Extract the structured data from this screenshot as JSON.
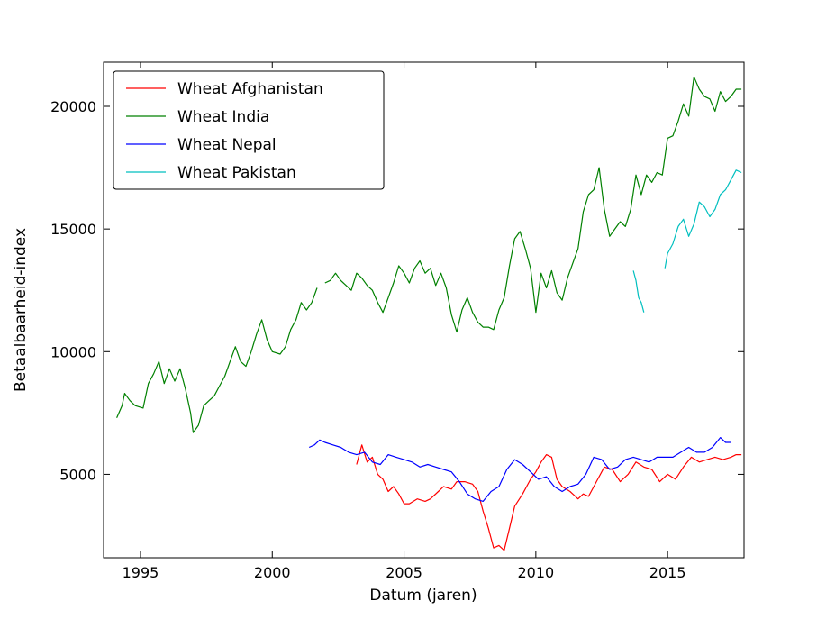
{
  "chart_data": {
    "type": "line",
    "title": "",
    "xlabel": "Datum (jaren)",
    "ylabel": "Betaalbaarheid-index",
    "xlim": [
      1993.6,
      2017.9
    ],
    "ylim": [
      1600,
      21800
    ],
    "xticks": [
      1995,
      2000,
      2005,
      2010,
      2015
    ],
    "yticks": [
      5000,
      10000,
      15000,
      20000
    ],
    "grid": false,
    "legend": "top-left",
    "series": [
      {
        "name": "Wheat Afghanistan",
        "color": "#ff0000",
        "segments": [
          [
            [
              2003.2,
              5400
            ],
            [
              2003.4,
              6200
            ],
            [
              2003.6,
              5500
            ],
            [
              2003.8,
              5700
            ],
            [
              2004.0,
              5000
            ],
            [
              2004.2,
              4800
            ],
            [
              2004.4,
              4300
            ],
            [
              2004.6,
              4500
            ],
            [
              2004.8,
              4200
            ],
            [
              2005.0,
              3800
            ],
            [
              2005.2,
              3800
            ],
            [
              2005.5,
              4000
            ],
            [
              2005.8,
              3900
            ],
            [
              2006.0,
              4000
            ],
            [
              2006.3,
              4300
            ],
            [
              2006.5,
              4500
            ],
            [
              2006.8,
              4400
            ],
            [
              2007.0,
              4700
            ],
            [
              2007.3,
              4700
            ],
            [
              2007.6,
              4600
            ],
            [
              2007.8,
              4300
            ],
            [
              2008.0,
              3500
            ],
            [
              2008.2,
              2800
            ],
            [
              2008.4,
              2000
            ],
            [
              2008.6,
              2100
            ],
            [
              2008.8,
              1900
            ],
            [
              2009.0,
              2800
            ],
            [
              2009.2,
              3700
            ],
            [
              2009.5,
              4200
            ],
            [
              2009.8,
              4800
            ],
            [
              2010.0,
              5100
            ],
            [
              2010.2,
              5500
            ],
            [
              2010.4,
              5800
            ],
            [
              2010.6,
              5700
            ],
            [
              2010.8,
              4800
            ],
            [
              2011.0,
              4500
            ],
            [
              2011.3,
              4300
            ],
            [
              2011.6,
              4000
            ],
            [
              2011.8,
              4200
            ],
            [
              2012.0,
              4100
            ],
            [
              2012.3,
              4700
            ],
            [
              2012.6,
              5300
            ],
            [
              2012.9,
              5200
            ],
            [
              2013.2,
              4700
            ],
            [
              2013.5,
              5000
            ],
            [
              2013.8,
              5500
            ],
            [
              2014.1,
              5300
            ],
            [
              2014.4,
              5200
            ],
            [
              2014.7,
              4700
            ],
            [
              2015.0,
              5000
            ],
            [
              2015.3,
              4800
            ],
            [
              2015.6,
              5300
            ],
            [
              2015.9,
              5700
            ],
            [
              2016.2,
              5500
            ],
            [
              2016.5,
              5600
            ],
            [
              2016.8,
              5700
            ],
            [
              2017.1,
              5600
            ],
            [
              2017.4,
              5700
            ],
            [
              2017.6,
              5800
            ],
            [
              2017.8,
              5800
            ]
          ]
        ]
      },
      {
        "name": "Wheat India",
        "color": "#008000",
        "segments": [
          [
            [
              1994.1,
              7300
            ],
            [
              1994.3,
              7800
            ],
            [
              1994.4,
              8300
            ],
            [
              1994.6,
              8000
            ],
            [
              1994.8,
              7800
            ],
            [
              1995.1,
              7700
            ],
            [
              1995.3,
              8700
            ],
            [
              1995.5,
              9100
            ],
            [
              1995.7,
              9600
            ],
            [
              1995.9,
              8700
            ],
            [
              1996.1,
              9300
            ],
            [
              1996.3,
              8800
            ],
            [
              1996.5,
              9300
            ],
            [
              1996.7,
              8500
            ],
            [
              1996.9,
              7500
            ],
            [
              1997.0,
              6700
            ],
            [
              1997.2,
              7000
            ],
            [
              1997.4,
              7800
            ],
            [
              1997.6,
              8000
            ],
            [
              1997.8,
              8200
            ],
            [
              1998.0,
              8600
            ],
            [
              1998.2,
              9000
            ],
            [
              1998.4,
              9600
            ],
            [
              1998.6,
              10200
            ],
            [
              1998.8,
              9600
            ],
            [
              1999.0,
              9400
            ],
            [
              1999.2,
              10000
            ],
            [
              1999.4,
              10700
            ],
            [
              1999.6,
              11300
            ],
            [
              1999.8,
              10500
            ],
            [
              2000.0,
              10000
            ],
            [
              2000.3,
              9900
            ],
            [
              2000.5,
              10200
            ],
            [
              2000.7,
              10900
            ],
            [
              2000.9,
              11300
            ],
            [
              2001.1,
              12000
            ],
            [
              2001.3,
              11700
            ],
            [
              2001.5,
              12000
            ],
            [
              2001.7,
              12600
            ]
          ],
          [
            [
              2002.0,
              12800
            ],
            [
              2002.2,
              12900
            ],
            [
              2002.4,
              13200
            ],
            [
              2002.6,
              12900
            ],
            [
              2002.8,
              12700
            ],
            [
              2003.0,
              12500
            ],
            [
              2003.2,
              13200
            ],
            [
              2003.4,
              13000
            ],
            [
              2003.6,
              12700
            ],
            [
              2003.8,
              12500
            ],
            [
              2004.0,
              12000
            ],
            [
              2004.2,
              11600
            ],
            [
              2004.4,
              12200
            ],
            [
              2004.6,
              12800
            ],
            [
              2004.8,
              13500
            ],
            [
              2005.0,
              13200
            ],
            [
              2005.2,
              12800
            ],
            [
              2005.4,
              13400
            ],
            [
              2005.6,
              13700
            ],
            [
              2005.8,
              13200
            ],
            [
              2006.0,
              13400
            ],
            [
              2006.2,
              12700
            ],
            [
              2006.4,
              13200
            ],
            [
              2006.6,
              12600
            ],
            [
              2006.8,
              11500
            ],
            [
              2007.0,
              10800
            ],
            [
              2007.2,
              11700
            ],
            [
              2007.4,
              12200
            ],
            [
              2007.6,
              11600
            ],
            [
              2007.8,
              11200
            ],
            [
              2008.0,
              11000
            ],
            [
              2008.2,
              11000
            ],
            [
              2008.4,
              10900
            ],
            [
              2008.6,
              11700
            ],
            [
              2008.8,
              12200
            ],
            [
              2009.0,
              13500
            ],
            [
              2009.2,
              14600
            ],
            [
              2009.4,
              14900
            ],
            [
              2009.6,
              14200
            ],
            [
              2009.8,
              13400
            ],
            [
              2010.0,
              11600
            ],
            [
              2010.2,
              13200
            ],
            [
              2010.4,
              12600
            ],
            [
              2010.6,
              13300
            ],
            [
              2010.8,
              12400
            ],
            [
              2011.0,
              12100
            ],
            [
              2011.2,
              13000
            ],
            [
              2011.4,
              13600
            ],
            [
              2011.6,
              14200
            ],
            [
              2011.8,
              15700
            ],
            [
              2012.0,
              16400
            ],
            [
              2012.2,
              16600
            ],
            [
              2012.4,
              17500
            ],
            [
              2012.6,
              15800
            ],
            [
              2012.8,
              14700
            ],
            [
              2013.0,
              15000
            ],
            [
              2013.2,
              15300
            ],
            [
              2013.4,
              15100
            ],
            [
              2013.6,
              15800
            ],
            [
              2013.8,
              17200
            ],
            [
              2014.0,
              16400
            ],
            [
              2014.2,
              17200
            ],
            [
              2014.4,
              16900
            ],
            [
              2014.6,
              17300
            ],
            [
              2014.8,
              17200
            ],
            [
              2015.0,
              18700
            ],
            [
              2015.2,
              18800
            ],
            [
              2015.4,
              19400
            ],
            [
              2015.6,
              20100
            ],
            [
              2015.8,
              19600
            ],
            [
              2016.0,
              21200
            ],
            [
              2016.2,
              20700
            ],
            [
              2016.4,
              20400
            ],
            [
              2016.6,
              20300
            ],
            [
              2016.8,
              19800
            ],
            [
              2017.0,
              20600
            ],
            [
              2017.2,
              20200
            ],
            [
              2017.4,
              20400
            ],
            [
              2017.6,
              20700
            ],
            [
              2017.8,
              20700
            ]
          ]
        ]
      },
      {
        "name": "Wheat Nepal",
        "color": "#0000ff",
        "segments": [
          [
            [
              2001.4,
              6100
            ],
            [
              2001.6,
              6200
            ],
            [
              2001.8,
              6400
            ],
            [
              2002.0,
              6300
            ],
            [
              2002.3,
              6200
            ],
            [
              2002.6,
              6100
            ],
            [
              2002.9,
              5900
            ],
            [
              2003.2,
              5800
            ],
            [
              2003.5,
              5900
            ],
            [
              2003.8,
              5500
            ],
            [
              2004.1,
              5400
            ],
            [
              2004.4,
              5800
            ],
            [
              2004.7,
              5700
            ],
            [
              2005.0,
              5600
            ],
            [
              2005.3,
              5500
            ],
            [
              2005.6,
              5300
            ],
            [
              2005.9,
              5400
            ],
            [
              2006.2,
              5300
            ],
            [
              2006.5,
              5200
            ],
            [
              2006.8,
              5100
            ],
            [
              2007.1,
              4700
            ],
            [
              2007.4,
              4200
            ],
            [
              2007.7,
              4000
            ],
            [
              2008.0,
              3900
            ],
            [
              2008.3,
              4300
            ],
            [
              2008.6,
              4500
            ],
            [
              2008.9,
              5200
            ],
            [
              2009.2,
              5600
            ],
            [
              2009.5,
              5400
            ],
            [
              2009.8,
              5100
            ],
            [
              2010.1,
              4800
            ],
            [
              2010.4,
              4900
            ],
            [
              2010.7,
              4500
            ],
            [
              2011.0,
              4300
            ],
            [
              2011.3,
              4500
            ],
            [
              2011.6,
              4600
            ],
            [
              2011.9,
              5000
            ],
            [
              2012.2,
              5700
            ],
            [
              2012.5,
              5600
            ],
            [
              2012.8,
              5200
            ],
            [
              2013.1,
              5300
            ],
            [
              2013.4,
              5600
            ],
            [
              2013.7,
              5700
            ],
            [
              2014.0,
              5600
            ],
            [
              2014.3,
              5500
            ],
            [
              2014.6,
              5700
            ],
            [
              2014.9,
              5700
            ],
            [
              2015.2,
              5700
            ],
            [
              2015.5,
              5900
            ],
            [
              2015.8,
              6100
            ],
            [
              2016.1,
              5900
            ],
            [
              2016.4,
              5900
            ],
            [
              2016.7,
              6100
            ],
            [
              2017.0,
              6500
            ],
            [
              2017.2,
              6300
            ],
            [
              2017.4,
              6300
            ]
          ]
        ]
      },
      {
        "name": "Wheat Pakistan",
        "color": "#00bfbf",
        "segments": [
          [
            [
              2013.7,
              13300
            ],
            [
              2013.8,
              12900
            ],
            [
              2013.9,
              12200
            ],
            [
              2014.0,
              12000
            ],
            [
              2014.1,
              11600
            ]
          ],
          [
            [
              2014.9,
              13400
            ],
            [
              2015.0,
              14000
            ],
            [
              2015.2,
              14400
            ],
            [
              2015.4,
              15100
            ],
            [
              2015.6,
              15400
            ],
            [
              2015.8,
              14700
            ],
            [
              2016.0,
              15200
            ],
            [
              2016.2,
              16100
            ],
            [
              2016.4,
              15900
            ],
            [
              2016.6,
              15500
            ],
            [
              2016.8,
              15800
            ],
            [
              2017.0,
              16400
            ],
            [
              2017.2,
              16600
            ],
            [
              2017.4,
              17000
            ],
            [
              2017.6,
              17400
            ],
            [
              2017.8,
              17300
            ]
          ]
        ]
      }
    ]
  }
}
